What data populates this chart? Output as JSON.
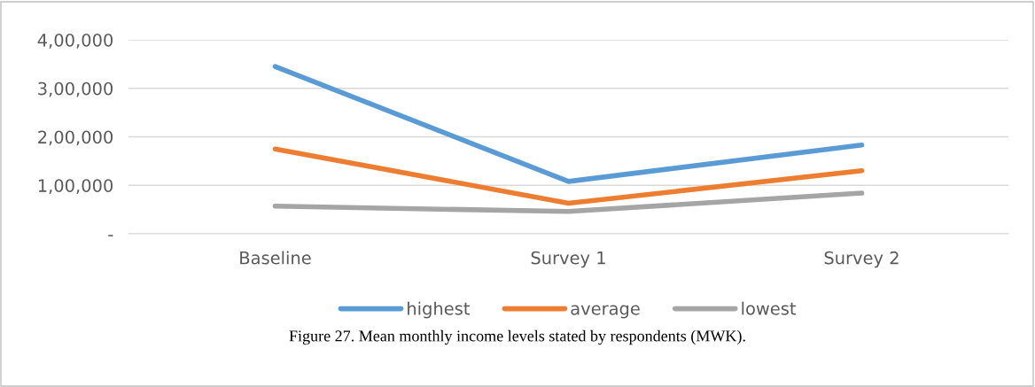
{
  "chart_data": {
    "type": "line",
    "categories": [
      "Baseline",
      "Survey 1",
      "Survey 2"
    ],
    "series": [
      {
        "name": "highest",
        "color": "#5b9bd5",
        "values": [
          345000,
          108000,
          183000
        ]
      },
      {
        "name": "average",
        "color": "#ed7d31",
        "values": [
          175000,
          63000,
          130000
        ]
      },
      {
        "name": "lowest",
        "color": "#a5a5a5",
        "values": [
          57000,
          46000,
          84000
        ]
      }
    ],
    "ylim": [
      0,
      400000
    ],
    "yticks": [
      {
        "value": 0,
        "label": "-"
      },
      {
        "value": 100000,
        "label": "1,00,000"
      },
      {
        "value": 200000,
        "label": "2,00,000"
      },
      {
        "value": 300000,
        "label": "3,00,000"
      },
      {
        "value": 400000,
        "label": "4,00,000"
      }
    ],
    "grid": "y",
    "legend": "bottom",
    "marker": "none",
    "line_style": "solid",
    "annotations": [
      "Figure 27. Mean monthly income levels stated by respondents (MWK)."
    ]
  }
}
